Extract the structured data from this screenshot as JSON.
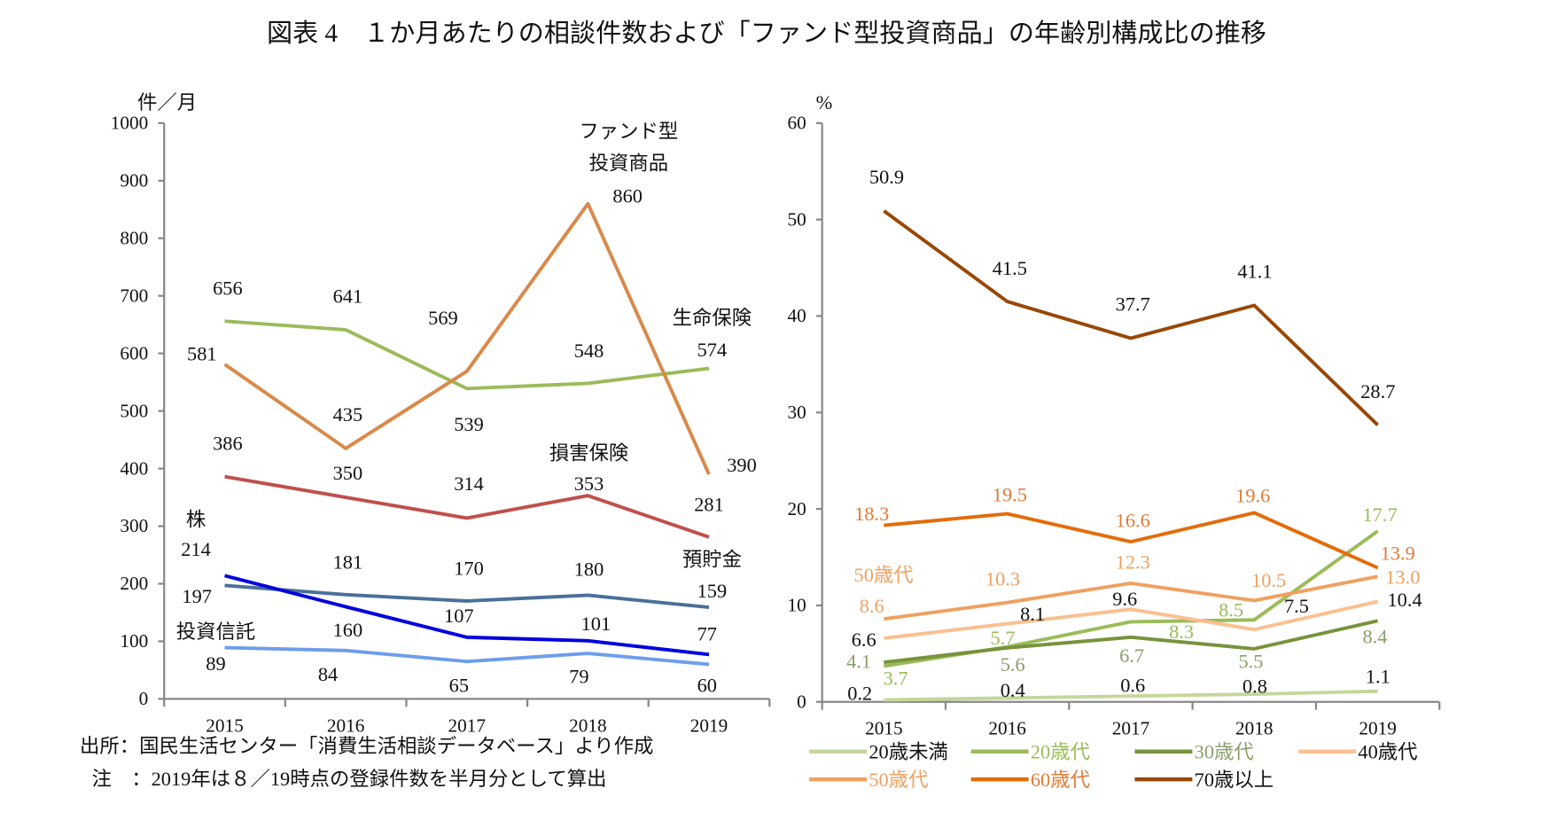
{
  "title": "図表 4　１か月あたりの相談件数および「ファンド型投資商品」の年齢別構成比の推移",
  "notes": {
    "source": "出所：国民生活センター「消費生活相談データベース」より作成",
    "note": "注　：2019年は８／19時点の登録件数を半月分として算出"
  },
  "chart_data": [
    {
      "type": "line",
      "ylabel": "件／月",
      "ylim": [
        0,
        1000
      ],
      "yticks": [
        "0",
        "100",
        "200",
        "300",
        "400",
        "500",
        "600",
        "700",
        "800",
        "900",
        "1000"
      ],
      "categories": [
        "2015",
        "2016",
        "2017",
        "2018",
        "2019"
      ],
      "legend": "none (inline labels)",
      "series": [
        {
          "name": "生命保険",
          "values": [
            656,
            641,
            539,
            548,
            574
          ],
          "color": "#9bbb59"
        },
        {
          "name": "ファンド型\n投資商品",
          "name_lines": [
            "ファンド型",
            "投資商品"
          ],
          "values": [
            581,
            435,
            569,
            860,
            390
          ],
          "color": "#d9894a"
        },
        {
          "name": "損害保険",
          "values": [
            386,
            350,
            314,
            353,
            281
          ],
          "color": "#c0504d"
        },
        {
          "name": "預貯金",
          "values": [
            197,
            181,
            170,
            180,
            159
          ],
          "color": "#4a6f9a"
        },
        {
          "name": "株",
          "values": [
            214,
            160,
            107,
            101,
            77
          ],
          "color": "#0000dd"
        },
        {
          "name": "投資信託",
          "values": [
            89,
            84,
            65,
            79,
            60
          ],
          "color": "#6d9eeb"
        }
      ]
    },
    {
      "type": "line",
      "ylabel": "%",
      "ylim": [
        0,
        60
      ],
      "yticks": [
        "0",
        "10",
        "20",
        "30",
        "40",
        "50",
        "60"
      ],
      "categories": [
        "2015",
        "2016",
        "2017",
        "2018",
        "2019"
      ],
      "legend": "bottom",
      "series": [
        {
          "name": "20歳未満",
          "values": [
            0.2,
            0.4,
            0.6,
            0.8,
            1.1
          ],
          "labels": [
            "0.2",
            "0.4",
            "0.6",
            "0.8",
            "1.1"
          ],
          "color": "#c4d79b",
          "label_color": "#111111"
        },
        {
          "name": "20歳代",
          "values": [
            3.7,
            5.7,
            8.3,
            8.5,
            17.7
          ],
          "labels": [
            "3.7",
            "5.7",
            "8.3",
            "8.5",
            "17.7"
          ],
          "color": "#9bbb59",
          "label_color": "#9bbb59"
        },
        {
          "name": "30歳代",
          "values": [
            4.1,
            5.6,
            6.7,
            5.5,
            8.4
          ],
          "labels": [
            "4.1",
            "5.6",
            "6.7",
            "5.5",
            "8.4"
          ],
          "color": "#77933c",
          "label_color": "#8a9f6a"
        },
        {
          "name": "40歳代",
          "values": [
            6.6,
            8.1,
            9.6,
            7.5,
            10.4
          ],
          "labels": [
            "6.6",
            "8.1",
            "9.6",
            "7.5",
            "10.4"
          ],
          "color": "#fac090",
          "label_color": "#111111"
        },
        {
          "name": "50歳代",
          "values": [
            8.6,
            10.3,
            12.3,
            10.5,
            13.0
          ],
          "labels": [
            "8.6",
            "10.3",
            "12.3",
            "10.5",
            "13.0"
          ],
          "color": "#f0a060",
          "label_color": "#f0a060"
        },
        {
          "name": "60歳代",
          "values": [
            18.3,
            19.5,
            16.6,
            19.6,
            13.9
          ],
          "labels": [
            "18.3",
            "19.5",
            "16.6",
            "19.6",
            "13.9"
          ],
          "color": "#e46c0a",
          "label_color": "#e07b39"
        },
        {
          "name": "70歳以上",
          "values": [
            50.9,
            41.5,
            37.7,
            41.1,
            28.7
          ],
          "labels": [
            "50.9",
            "41.5",
            "37.7",
            "41.1",
            "28.7"
          ],
          "color": "#984807",
          "label_color": "#111111"
        }
      ],
      "inline_label": "50歳代"
    }
  ]
}
